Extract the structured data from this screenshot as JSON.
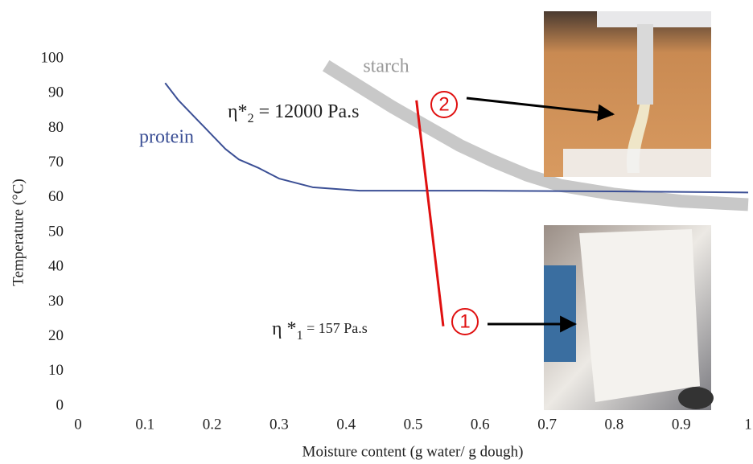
{
  "chart_data": {
    "type": "line",
    "x_label": "Moisture content (g water/ g dough)",
    "y_label": "Temperature (°C)",
    "xlim": [
      0,
      1
    ],
    "xticks": [
      0,
      0.1,
      0.2,
      0.3,
      0.4,
      0.5,
      0.6,
      0.7,
      0.8,
      0.9,
      1
    ],
    "ylim": [
      0,
      100
    ],
    "yticks": [
      0,
      10,
      20,
      30,
      40,
      50,
      60,
      70,
      80,
      90,
      100
    ],
    "series": [
      {
        "name": "protein",
        "color": "#3b4f95",
        "width": 2,
        "x": [
          0.13,
          0.15,
          0.18,
          0.2,
          0.22,
          0.24,
          0.27,
          0.3,
          0.35,
          0.42,
          0.6,
          0.8,
          1.0
        ],
        "values": [
          93,
          88,
          82,
          78,
          74,
          71,
          68.5,
          65.5,
          63,
          62,
          62,
          61.8,
          61.5
        ]
      },
      {
        "name": "starch",
        "color": "#c8c8c8",
        "width": 16,
        "x": [
          0.37,
          0.42,
          0.47,
          0.52,
          0.57,
          0.62,
          0.67,
          0.72,
          0.8,
          0.9,
          1.0
        ],
        "values": [
          98,
          92,
          86,
          80.5,
          75,
          70.5,
          66.5,
          63.5,
          61,
          59,
          58
        ]
      }
    ],
    "connector": {
      "color": "#e01010",
      "x": [
        0.505,
        0.545
      ],
      "values": [
        88,
        23
      ]
    },
    "annotations": [
      {
        "marker": "2",
        "prefix": "η*",
        "sub": "2",
        "suffix": " = 12000 Pa.s"
      },
      {
        "marker": "1",
        "prefix": "η *",
        "sub": "1",
        "suffix": " =  157 Pa.s"
      }
    ]
  }
}
